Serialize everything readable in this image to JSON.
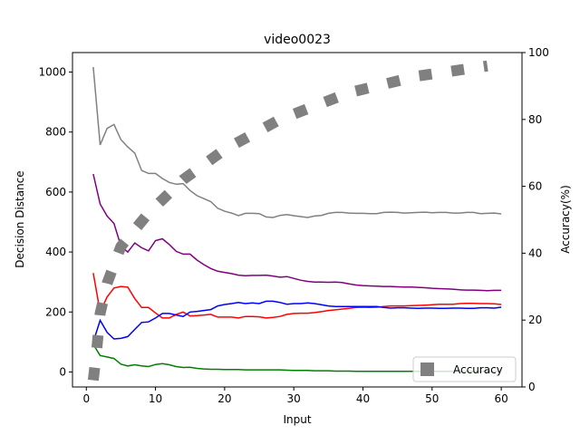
{
  "chart_data": {
    "type": "line",
    "title": "video0023",
    "xlabel": "Input",
    "ylabel_left": "Decision Distance",
    "ylabel_right": "Accuracy(%)",
    "xlim": [
      -2,
      63
    ],
    "ylim_left": [
      -50,
      1065
    ],
    "ylim_right": [
      0,
      100
    ],
    "x_ticks": [
      0,
      10,
      20,
      30,
      40,
      50,
      60
    ],
    "y_left_ticks": [
      0,
      200,
      400,
      600,
      800,
      1000
    ],
    "y_right_ticks": [
      0,
      20,
      40,
      60,
      80,
      100
    ],
    "grid": false,
    "legend_position": "bottom-right",
    "legend": [
      {
        "name": "Accuracy",
        "color": "#808080"
      }
    ],
    "series": [
      {
        "color": "#808080",
        "axis": "left",
        "style": "solid",
        "x": [
          1,
          2,
          3,
          4,
          5,
          6,
          7,
          8,
          9,
          10,
          11,
          12,
          13,
          14,
          15,
          16,
          17,
          18,
          19,
          20,
          21,
          22,
          23,
          24,
          25,
          26,
          27,
          28,
          29,
          30,
          31,
          32,
          33,
          34,
          35,
          36,
          37,
          38,
          39,
          40,
          41,
          42,
          43,
          44,
          45,
          46,
          47,
          48,
          49,
          50,
          51,
          52,
          53,
          54,
          55,
          56,
          57,
          58,
          59,
          60
        ],
        "values": [
          1017,
          757,
          812,
          825,
          775,
          750,
          730,
          672,
          662,
          662,
          645,
          632,
          626,
          628,
          605,
          588,
          578,
          568,
          546,
          536,
          530,
          521,
          529,
          529,
          528,
          517,
          515,
          522,
          525,
          521,
          518,
          515,
          520,
          522,
          529,
          532,
          532,
          530,
          529,
          529,
          528,
          528,
          532,
          533,
          532,
          530,
          531,
          532,
          533,
          531,
          532,
          532,
          530,
          530,
          532,
          532,
          528,
          529,
          530,
          527
        ]
      },
      {
        "color": "#800080",
        "axis": "left",
        "style": "solid",
        "x": [
          1,
          2,
          3,
          4,
          5,
          6,
          7,
          8,
          9,
          10,
          11,
          12,
          13,
          14,
          15,
          16,
          17,
          18,
          19,
          20,
          21,
          22,
          23,
          24,
          25,
          26,
          27,
          28,
          29,
          30,
          31,
          32,
          33,
          34,
          35,
          36,
          37,
          38,
          39,
          40,
          41,
          42,
          43,
          44,
          45,
          46,
          47,
          48,
          49,
          50,
          51,
          52,
          53,
          54,
          55,
          56,
          57,
          58,
          59,
          60
        ],
        "values": [
          660,
          560,
          520,
          495,
          420,
          400,
          430,
          414,
          404,
          438,
          444,
          425,
          402,
          393,
          393,
          373,
          358,
          345,
          336,
          332,
          328,
          323,
          321,
          322,
          322,
          323,
          320,
          316,
          318,
          312,
          306,
          302,
          300,
          300,
          299,
          300,
          298,
          294,
          290,
          288,
          287,
          286,
          285,
          285,
          284,
          283,
          283,
          282,
          281,
          279,
          278,
          277,
          276,
          274,
          273,
          273,
          272,
          271,
          272,
          272
        ]
      },
      {
        "color": "#ff0000",
        "axis": "left",
        "style": "solid",
        "x": [
          1,
          2,
          3,
          4,
          5,
          6,
          7,
          8,
          9,
          10,
          11,
          12,
          13,
          14,
          15,
          16,
          17,
          18,
          19,
          20,
          21,
          22,
          23,
          24,
          25,
          26,
          27,
          28,
          29,
          30,
          31,
          32,
          33,
          34,
          35,
          36,
          37,
          38,
          39,
          40,
          41,
          42,
          43,
          44,
          45,
          46,
          47,
          48,
          49,
          50,
          51,
          52,
          53,
          54,
          55,
          56,
          57,
          58,
          59,
          60
        ],
        "values": [
          330,
          200,
          250,
          280,
          285,
          283,
          245,
          215,
          215,
          197,
          180,
          180,
          192,
          200,
          187,
          188,
          190,
          192,
          183,
          183,
          183,
          180,
          185,
          185,
          184,
          180,
          182,
          185,
          192,
          195,
          196,
          196,
          198,
          201,
          205,
          207,
          210,
          212,
          215,
          216,
          215,
          216,
          218,
          220,
          220,
          220,
          221,
          222,
          223,
          224,
          226,
          226,
          226,
          228,
          229,
          229,
          228,
          228,
          227,
          225
        ]
      },
      {
        "color": "#0000ff",
        "axis": "left",
        "style": "solid",
        "x": [
          1,
          2,
          3,
          4,
          5,
          6,
          7,
          8,
          9,
          10,
          11,
          12,
          13,
          14,
          15,
          16,
          17,
          18,
          19,
          20,
          21,
          22,
          23,
          24,
          25,
          26,
          27,
          28,
          29,
          30,
          31,
          32,
          33,
          34,
          35,
          36,
          37,
          38,
          39,
          40,
          41,
          42,
          43,
          44,
          45,
          46,
          47,
          48,
          49,
          50,
          51,
          52,
          53,
          54,
          55,
          56,
          57,
          58,
          59,
          60
        ],
        "values": [
          100,
          172,
          132,
          110,
          112,
          118,
          142,
          165,
          167,
          180,
          195,
          195,
          190,
          185,
          200,
          202,
          205,
          208,
          220,
          225,
          228,
          232,
          228,
          230,
          228,
          236,
          236,
          232,
          226,
          228,
          228,
          230,
          228,
          224,
          220,
          218,
          218,
          218,
          218,
          218,
          218,
          218,
          215,
          213,
          214,
          214,
          213,
          212,
          213,
          213,
          212,
          212,
          213,
          213,
          212,
          212,
          214,
          214,
          213,
          216
        ]
      },
      {
        "color": "#008000",
        "axis": "left",
        "style": "solid",
        "x": [
          1,
          2,
          3,
          4,
          5,
          6,
          7,
          8,
          9,
          10,
          11,
          12,
          13,
          14,
          15,
          16,
          17,
          18,
          19,
          20,
          21,
          22,
          23,
          24,
          25,
          26,
          27,
          28,
          29,
          30,
          31,
          32,
          33,
          34,
          35,
          36,
          37,
          38,
          39,
          40,
          41,
          42,
          43,
          44,
          45,
          46,
          47,
          48,
          49,
          50,
          51,
          52,
          53,
          54,
          55,
          56,
          57,
          58,
          59,
          60
        ],
        "values": [
          92,
          55,
          50,
          45,
          26,
          20,
          24,
          20,
          18,
          25,
          28,
          24,
          18,
          15,
          16,
          12,
          10,
          9,
          9,
          8,
          8,
          8,
          7,
          7,
          7,
          7,
          7,
          7,
          6,
          5,
          5,
          5,
          4,
          4,
          4,
          3,
          3,
          3,
          2,
          2,
          2,
          2,
          2,
          2,
          2,
          2,
          2,
          2,
          2,
          2,
          2,
          2,
          2,
          2,
          2,
          2,
          2,
          2,
          2,
          2
        ]
      },
      {
        "name": "Accuracy",
        "color": "#808080",
        "axis": "right",
        "style": "dotted-thick",
        "x": [
          1,
          1.5,
          2,
          3,
          5,
          9,
          14,
          20,
          28,
          38,
          48,
          58
        ],
        "values": [
          2,
          11,
          22,
          31,
          42,
          52,
          62,
          71,
          80,
          88,
          93,
          96
        ]
      }
    ]
  }
}
